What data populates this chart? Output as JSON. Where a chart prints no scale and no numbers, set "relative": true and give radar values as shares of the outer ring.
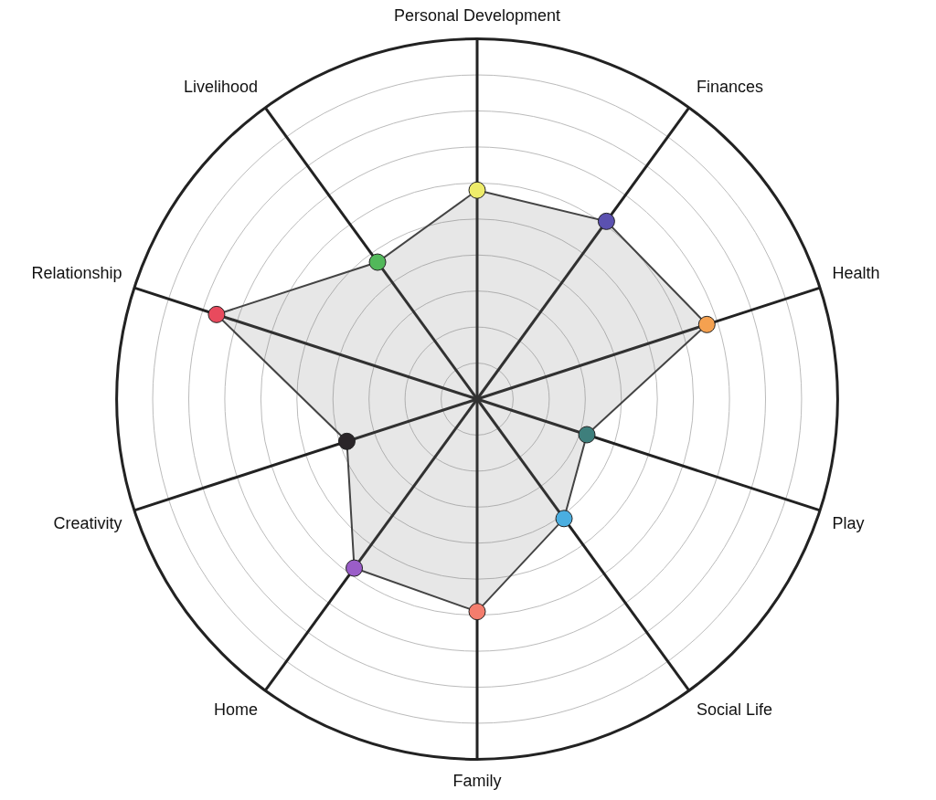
{
  "chart_data": {
    "type": "radar",
    "relative": true,
    "grid": true,
    "legend": false,
    "categories": [
      "Personal Development",
      "Finances",
      "Health",
      "Play",
      "Social Life",
      "Family",
      "Home",
      "Creativity",
      "Relationship",
      "Livelihood"
    ],
    "values": [
      0.58,
      0.61,
      0.67,
      0.32,
      0.41,
      0.59,
      0.58,
      0.38,
      0.76,
      0.47
    ],
    "colors": [
      "#eeec6a",
      "#5b51b0",
      "#f5a150",
      "#3e7f7c",
      "#4aaee0",
      "#f47d6d",
      "#9a5dc8",
      "#2a2528",
      "#e84a5d",
      "#52b85a"
    ]
  }
}
